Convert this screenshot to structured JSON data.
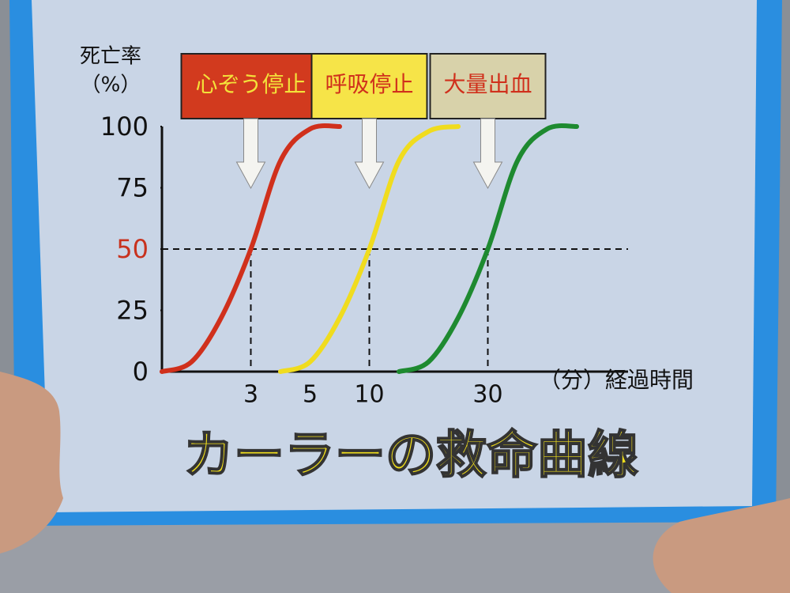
{
  "chart_data": {
    "type": "line",
    "title": "カーラーの救命曲線",
    "ylabel": "死亡率",
    "yunit": "（%）",
    "xlabel": "（分）経過時間",
    "categories": [
      null,
      null,
      null,
      "3",
      null,
      "5",
      null,
      "10",
      null,
      null,
      null,
      "30",
      null,
      null,
      null,
      null,
      null
    ],
    "ylim": [
      0,
      100
    ],
    "yticks": [
      0,
      25,
      50,
      75,
      100
    ],
    "highlight": {
      "y": 50,
      "color": "#c8321e"
    },
    "series": [
      {
        "name": "心ぞう停止",
        "color": "#d0301c",
        "box_color": "#d23a1e",
        "text_color": "#f3e23a",
        "values": [
          0,
          4,
          22,
          50,
          86,
          99,
          100,
          null,
          null,
          null,
          null,
          null,
          null,
          null,
          null,
          null,
          null
        ]
      },
      {
        "name": "呼吸停止",
        "color": "#f0dc1e",
        "box_color": "#f6e448",
        "text_color": "#d0301c",
        "values": [
          null,
          null,
          null,
          null,
          0,
          4,
          22,
          50,
          86,
          98,
          100,
          null,
          null,
          null,
          null,
          null,
          null
        ]
      },
      {
        "name": "大量出血",
        "color": "#1e8a30",
        "box_color": "#d8d2aa",
        "text_color": "#d0301c",
        "values": [
          null,
          null,
          null,
          null,
          null,
          null,
          null,
          null,
          0,
          4,
          22,
          50,
          86,
          99,
          100,
          null,
          null
        ]
      }
    ]
  }
}
